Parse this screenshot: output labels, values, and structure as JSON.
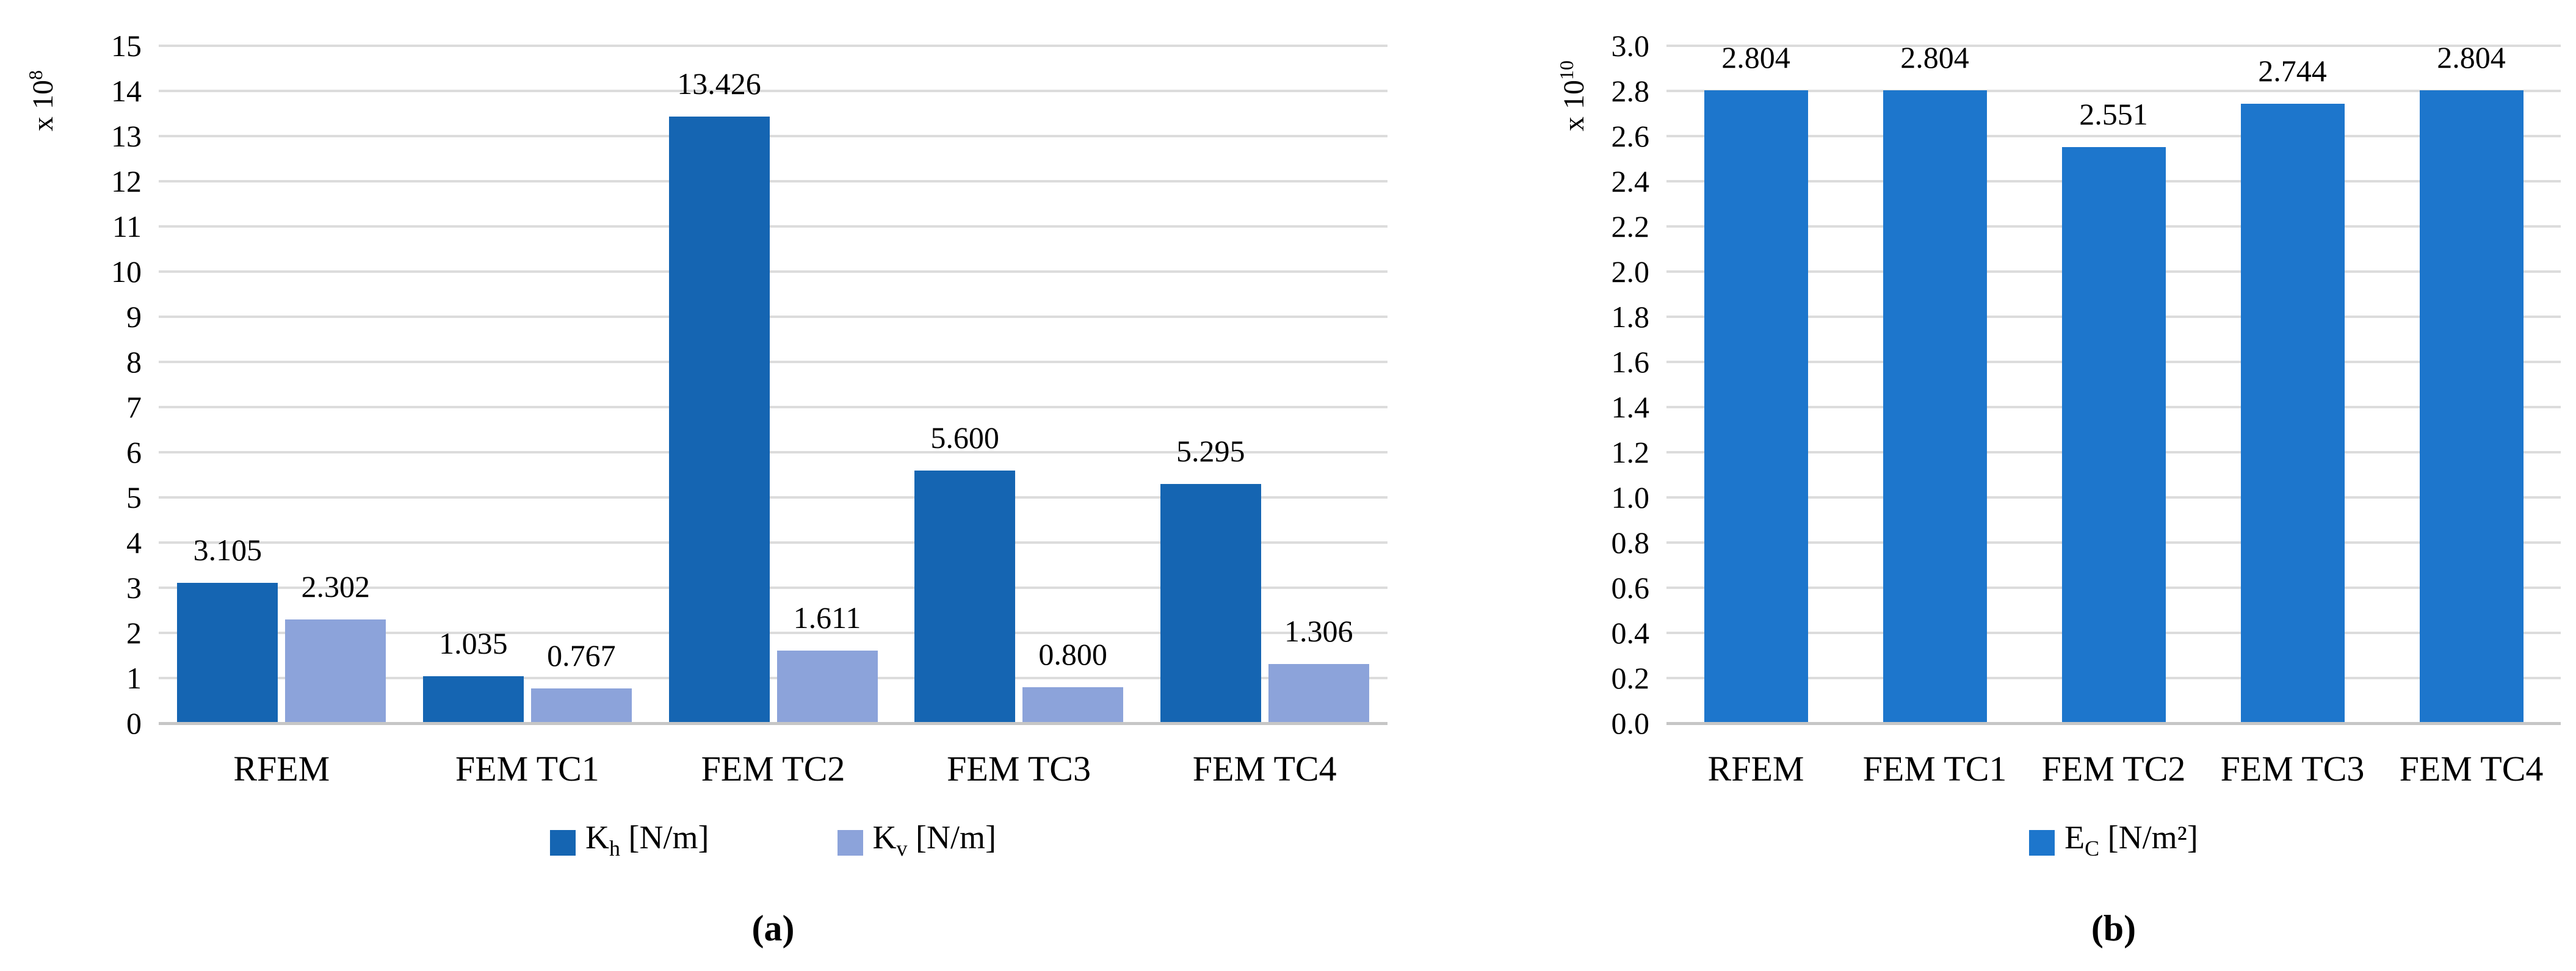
{
  "figure": {
    "panel_a": {
      "caption": "(a)",
      "mult_base": "x 10",
      "mult_exp": "8",
      "legend": [
        {
          "main": "K",
          "sub": "h",
          "rest": " [N/m]"
        },
        {
          "main": "K",
          "sub": "v",
          "rest": " [N/m]"
        }
      ]
    },
    "panel_b": {
      "caption": "(b)",
      "mult_base": "x 10",
      "mult_exp": "10",
      "legend": [
        {
          "main": "E",
          "sub": "C",
          "rest": " [N/m²]"
        }
      ]
    }
  },
  "chart_data": [
    {
      "type": "bar",
      "title": "",
      "xlabel": "",
      "ylabel": "x 10^8",
      "categories": [
        "RFEM",
        "FEM TC1",
        "FEM TC2",
        "FEM TC3",
        "FEM TC4"
      ],
      "series": [
        {
          "name": "Kh [N/m]",
          "color": "#1565B2",
          "values": [
            3.105,
            1.035,
            13.426,
            5.6,
            5.295
          ]
        },
        {
          "name": "Kv [N/m]",
          "color": "#8CA3DA",
          "values": [
            2.302,
            0.767,
            1.611,
            0.8,
            1.306
          ]
        }
      ],
      "ylim": [
        0,
        15
      ],
      "ytick_step": 1,
      "ytick_decimals": 0,
      "value_decimals": 3,
      "grid": true,
      "legend_position": "bottom"
    },
    {
      "type": "bar",
      "title": "",
      "xlabel": "",
      "ylabel": "x 10^10",
      "categories": [
        "RFEM",
        "FEM TC1",
        "FEM TC2",
        "FEM TC3",
        "FEM TC4"
      ],
      "series": [
        {
          "name": "EC [N/m²]",
          "color": "#1D76CC",
          "values": [
            2.804,
            2.804,
            2.551,
            2.744,
            2.804
          ]
        }
      ],
      "ylim": [
        0,
        3.0
      ],
      "ytick_step": 0.2,
      "ytick_decimals": 1,
      "value_decimals": 3,
      "grid": true,
      "legend_position": "bottom"
    }
  ]
}
